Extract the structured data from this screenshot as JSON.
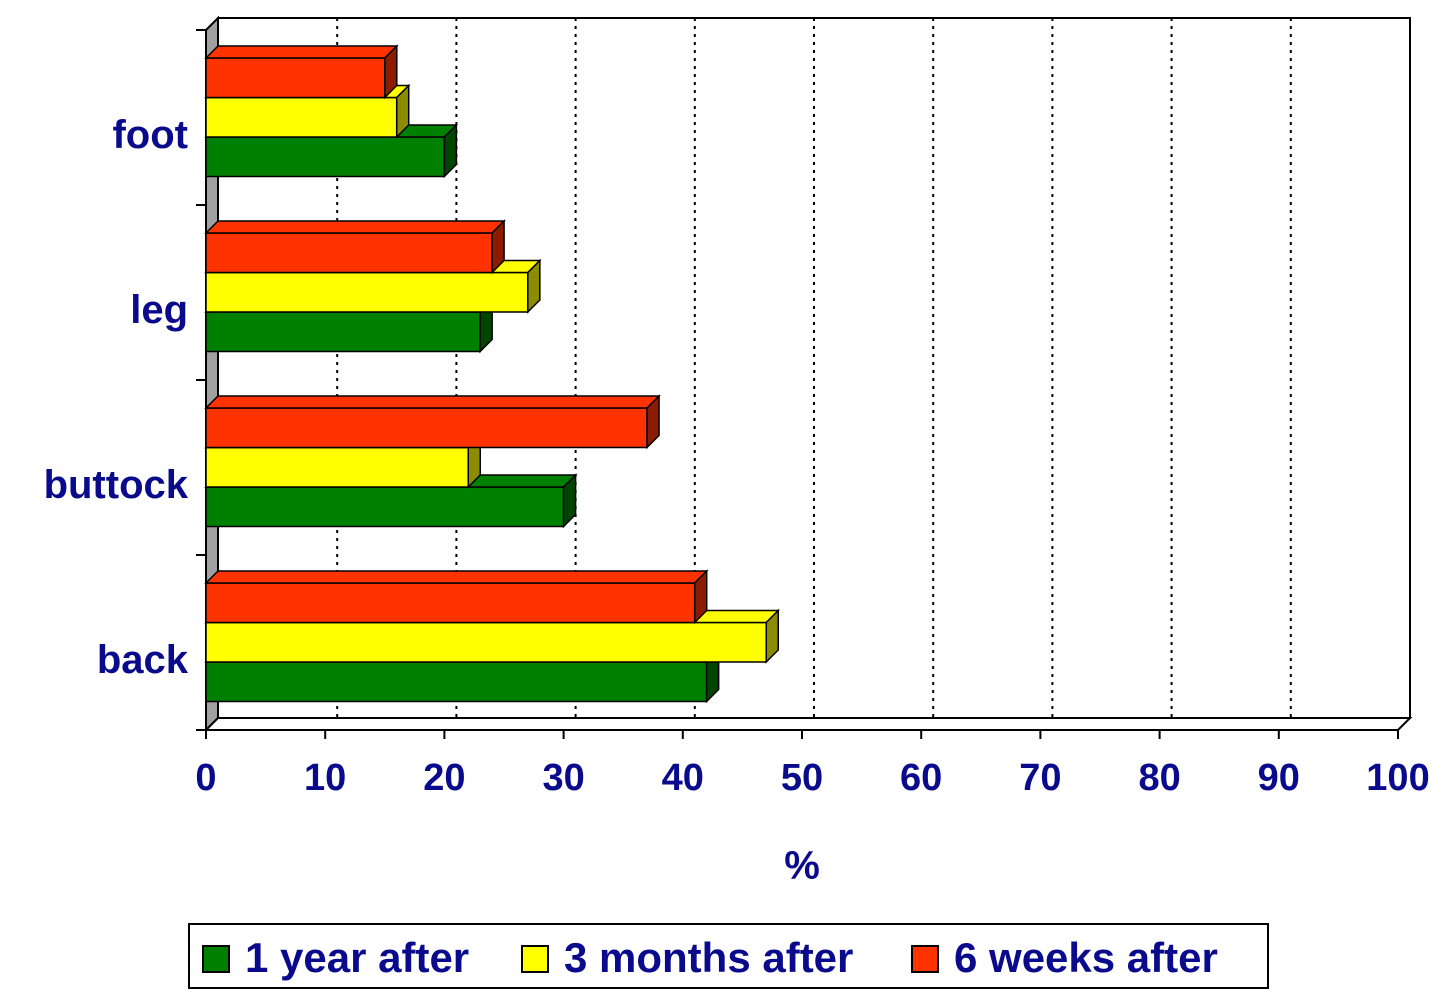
{
  "chart_data": {
    "type": "bar3d_horizontal",
    "categories": [
      "back",
      "buttock",
      "leg",
      "foot"
    ],
    "series": [
      {
        "name": "1 year after",
        "color": "#008000",
        "values": [
          42,
          30,
          23,
          20
        ]
      },
      {
        "name": "3 months after",
        "color": "#ffff00",
        "values": [
          47,
          22,
          27,
          16
        ]
      },
      {
        "name": "6 weeks after",
        "color": "#ff3300",
        "values": [
          41,
          37,
          24,
          15
        ]
      }
    ],
    "xlabel": "%",
    "xlim": [
      0,
      100
    ],
    "xticks": [
      0,
      10,
      20,
      30,
      40,
      50,
      60,
      70,
      80,
      90,
      100
    ],
    "grid": true,
    "legend": "bottom"
  }
}
